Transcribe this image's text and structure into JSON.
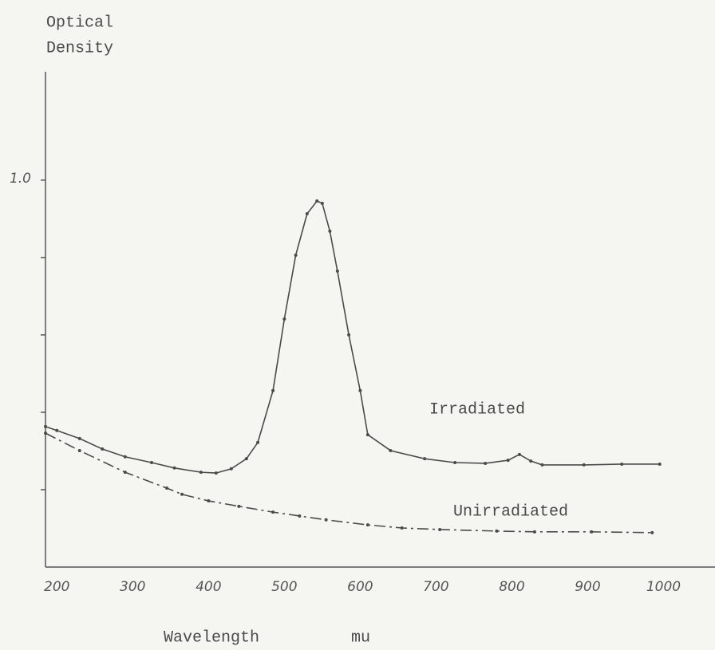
{
  "chart_data": {
    "type": "line",
    "y_label": [
      "Optical",
      "Density"
    ],
    "x_label": "Wavelength",
    "x_unit": "mu",
    "xlim": [
      185,
      1070
    ],
    "xticks": [
      200,
      300,
      400,
      500,
      600,
      700,
      800,
      900,
      1000
    ],
    "ylim": [
      0,
      1.28
    ],
    "yticks": [
      0.2,
      0.4,
      0.6,
      0.8,
      {
        "value": 1,
        "label": "1.0"
      }
    ],
    "series": [
      {
        "name": "Irradiated",
        "color": "#4a4a4a",
        "style": "solid",
        "markers": true,
        "x": [
          185,
          200,
          230,
          260,
          290,
          325,
          355,
          390,
          410,
          430,
          450,
          465,
          485,
          500,
          515,
          530,
          543,
          550,
          560,
          570,
          585,
          600,
          610,
          640,
          685,
          725,
          765,
          795,
          810,
          825,
          840,
          895,
          945,
          995
        ],
        "values": [
          0.363,
          0.353,
          0.332,
          0.305,
          0.285,
          0.27,
          0.256,
          0.245,
          0.243,
          0.254,
          0.28,
          0.322,
          0.456,
          0.641,
          0.806,
          0.913,
          0.946,
          0.94,
          0.868,
          0.765,
          0.6,
          0.456,
          0.342,
          0.301,
          0.28,
          0.27,
          0.268,
          0.276,
          0.291,
          0.274,
          0.264,
          0.264,
          0.266,
          0.266
        ]
      },
      {
        "name": "Unirradiated",
        "color": "#4a4a4a",
        "style": "dashdot",
        "markers": true,
        "x": [
          185,
          230,
          290,
          345,
          365,
          400,
          440,
          485,
          520,
          555,
          610,
          655,
          705,
          780,
          830,
          905,
          985
        ],
        "values": [
          0.346,
          0.301,
          0.245,
          0.204,
          0.188,
          0.171,
          0.157,
          0.142,
          0.132,
          0.122,
          0.109,
          0.101,
          0.097,
          0.093,
          0.091,
          0.091,
          0.089
        ]
      }
    ]
  }
}
